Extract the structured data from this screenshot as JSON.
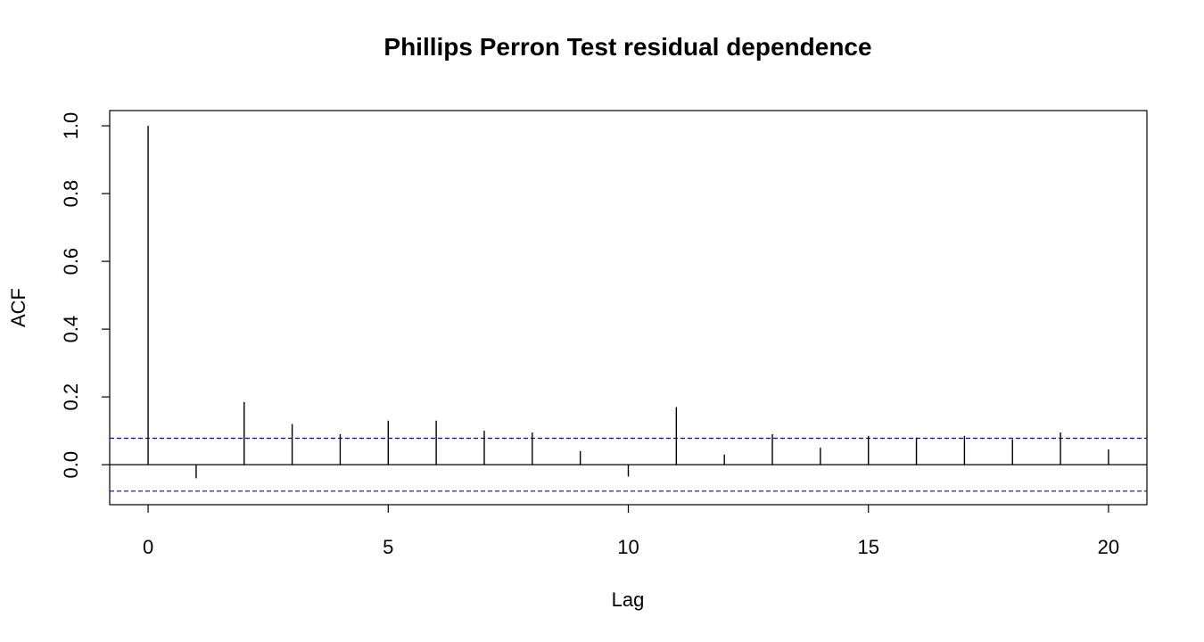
{
  "chart_data": {
    "type": "bar",
    "subtype": "acf",
    "title": "Phillips Perron Test residual dependence",
    "xlabel": "Lag",
    "ylabel": "ACF",
    "x": [
      0,
      1,
      2,
      3,
      4,
      5,
      6,
      7,
      8,
      9,
      10,
      11,
      12,
      13,
      14,
      15,
      16,
      17,
      18,
      19,
      20
    ],
    "values": [
      1.0,
      -0.04,
      0.185,
      0.12,
      0.09,
      0.13,
      0.13,
      0.1,
      0.095,
      0.04,
      -0.035,
      0.17,
      0.03,
      0.09,
      0.05,
      0.085,
      0.08,
      0.085,
      0.075,
      0.095,
      0.045
    ],
    "xlim": [
      -0.8,
      20.8
    ],
    "ylim": [
      -0.118,
      1.045
    ],
    "xticks": [
      "0",
      "5",
      "10",
      "15",
      "20"
    ],
    "xtick_values": [
      0,
      5,
      10,
      15,
      20
    ],
    "yticks": [
      "0.0",
      "0.2",
      "0.4",
      "0.6",
      "0.8",
      "1.0"
    ],
    "ytick_values": [
      0,
      0.2,
      0.4,
      0.6,
      0.8,
      1.0
    ],
    "confidence_bounds": [
      0.078,
      -0.078
    ],
    "zero_line": true,
    "grid": false,
    "colors": {
      "bars": "#000000",
      "confidence": "#0000cc",
      "zero_line": "#000000",
      "frame": "#000000"
    }
  }
}
